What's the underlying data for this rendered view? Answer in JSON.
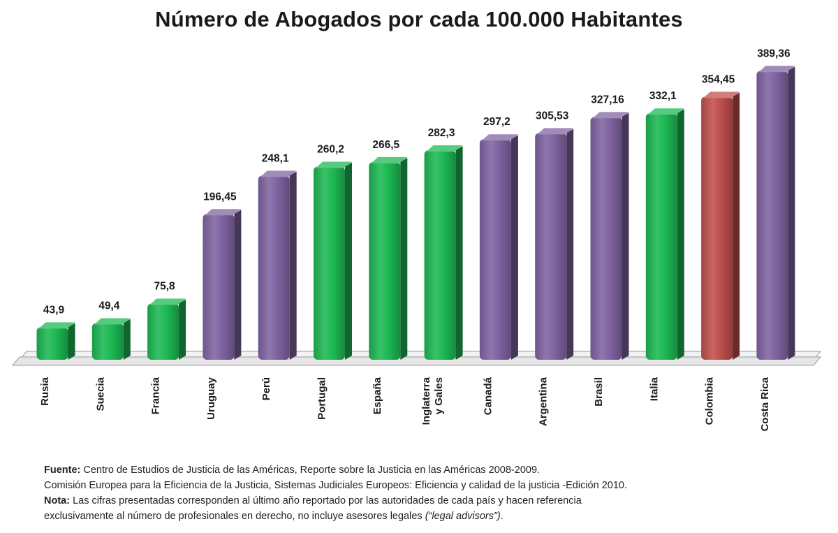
{
  "chart_data": {
    "type": "bar",
    "title": "Número de Abogados por cada 100.000 Habitantes",
    "categories": [
      "Rusia",
      "Suecia",
      "Francia",
      "Uruguay",
      "Perú",
      "Portugal",
      "España",
      "Inglaterra\ny Gales",
      "Canadá",
      "Argentina",
      "Brasil",
      "Italia",
      "Colombia",
      "Costa Rica"
    ],
    "values": [
      43.9,
      49.4,
      75.8,
      196.45,
      248.1,
      260.2,
      266.5,
      282.3,
      297.2,
      305.53,
      327.16,
      332.1,
      354.45,
      389.36
    ],
    "data_labels": [
      "43,9",
      "49,4",
      "75,8",
      "196,45",
      "248,1",
      "260,2",
      "266,5",
      "282,3",
      "297,2",
      "305,53",
      "327,16",
      "332,1",
      "354,45",
      "389,36"
    ],
    "bar_colors": [
      "#1db954",
      "#1db954",
      "#1db954",
      "#8064a2",
      "#8064a2",
      "#1db954",
      "#1db954",
      "#1db954",
      "#8064a2",
      "#8064a2",
      "#8064a2",
      "#1db954",
      "#c0504d",
      "#8064a2"
    ],
    "ylim": [
      0,
      400
    ],
    "grid": false,
    "legend": "none",
    "xlabel": "",
    "ylabel": ""
  },
  "colors": {
    "green": "#1db954",
    "purple": "#8064a2",
    "red": "#c0504d"
  },
  "notes": {
    "fuente_label": "Fuente:",
    "fuente_text": " Centro de Estudios de Justicia de las Américas, Reporte sobre la Justicia en las Américas  2008-2009.",
    "line2": "Comisión Europea para la Eficiencia de la Justicia, Sistemas Judiciales Europeos: Eficiencia y calidad de la justicia  -Edición 2010.",
    "nota_label": "Nota:",
    "nota_text": " Las cifras presentadas corresponden al último año reportado por las autoridades de  cada país y hacen referencia",
    "line4_text": "exclusivamente al número de profesionales en derecho, no incluye asesores legales ",
    "line4_italic": "(“legal advisors”)",
    "line4_end": "."
  }
}
